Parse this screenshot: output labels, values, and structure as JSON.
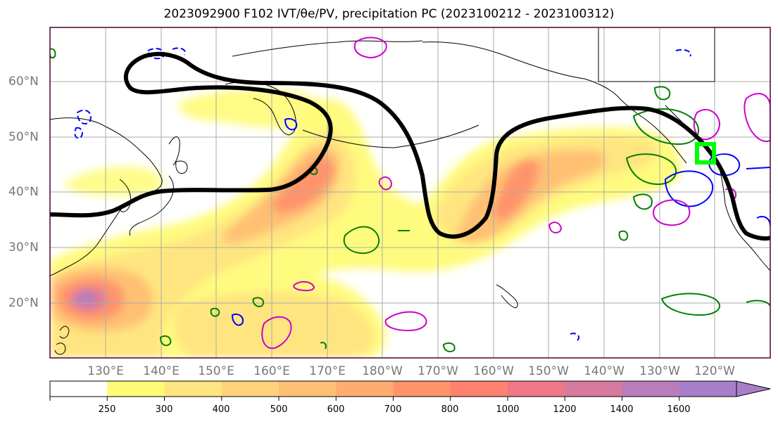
{
  "title": "2023092900 F102 IVT/θe/PV, precipitation PC (2023100212 - 2023100312)",
  "map": {
    "lat_labels": [
      "60°N",
      "50°N",
      "40°N",
      "30°N",
      "20°N"
    ],
    "lon_labels": [
      "130°E",
      "140°E",
      "150°E",
      "160°E",
      "170°E",
      "180°W",
      "170°W",
      "160°W",
      "150°W",
      "140°W",
      "130°W",
      "120°W"
    ],
    "extent": {
      "lon_min": 120,
      "lon_max": 250,
      "lat_min": 10,
      "lat_max": 70
    },
    "colors": {
      "theta_e_contour": "#000000",
      "pv_positive": "#008000",
      "pv_negative": "#0000ff",
      "precip_pc": "#cc00cc",
      "target_box": "#00ff00"
    }
  },
  "colorbar": {
    "levels": [
      "250",
      "300",
      "400",
      "500",
      "600",
      "700",
      "800",
      "1000",
      "1200",
      "1400",
      "1600"
    ],
    "colors": [
      "#ffffff",
      "#fffb77",
      "#ffe580",
      "#ffd27a",
      "#ffc073",
      "#ffad6f",
      "#ff946c",
      "#ff8270",
      "#ef7787",
      "#d67a9f",
      "#b87ebb",
      "#a77fc9"
    ]
  }
}
